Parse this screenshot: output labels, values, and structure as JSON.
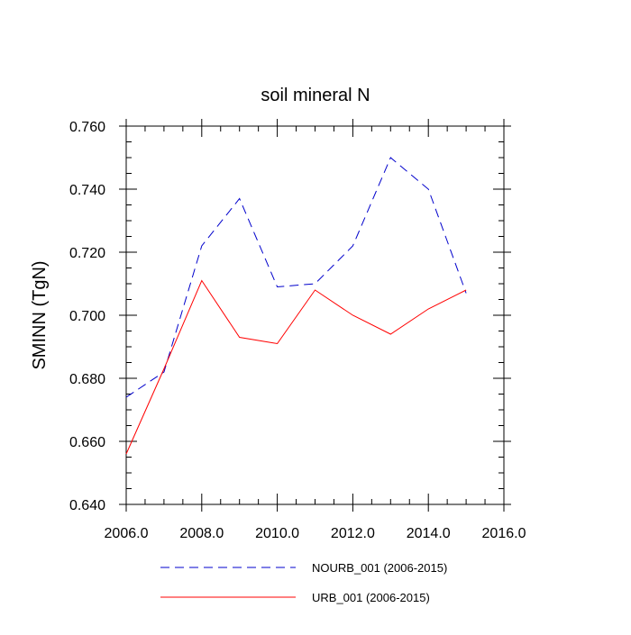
{
  "chart_data": {
    "type": "line",
    "title": "soil mineral N",
    "xlabel": "",
    "ylabel": "SMINN  (TgN)",
    "xlim": [
      2006.0,
      2016.0
    ],
    "ylim": [
      0.64,
      0.76
    ],
    "x_ticks": [
      2006.0,
      2008.0,
      2010.0,
      2012.0,
      2014.0,
      2016.0
    ],
    "x_tick_labels": [
      "2006.0",
      "2008.0",
      "2010.0",
      "2012.0",
      "2014.0",
      "2016.0"
    ],
    "y_ticks": [
      0.64,
      0.66,
      0.68,
      0.7,
      0.72,
      0.74,
      0.76
    ],
    "y_tick_labels": [
      "0.640",
      "0.660",
      "0.680",
      "0.700",
      "0.720",
      "0.740",
      "0.760"
    ],
    "grid": false,
    "legend_position": "bottom",
    "x": [
      2006,
      2007,
      2008,
      2009,
      2010,
      2011,
      2012,
      2013,
      2014,
      2015
    ],
    "series": [
      {
        "name": "NOURB_001 (2006-2015)",
        "color": "#0000cc",
        "style": "dashed",
        "values": [
          0.674,
          0.682,
          0.722,
          0.737,
          0.709,
          0.71,
          0.722,
          0.75,
          0.74,
          0.707
        ]
      },
      {
        "name": "URB_001 (2006-2015)",
        "color": "#ff0000",
        "style": "solid",
        "values": [
          0.656,
          0.683,
          0.711,
          0.693,
          0.691,
          0.708,
          0.7,
          0.694,
          0.702,
          0.708
        ]
      }
    ]
  }
}
